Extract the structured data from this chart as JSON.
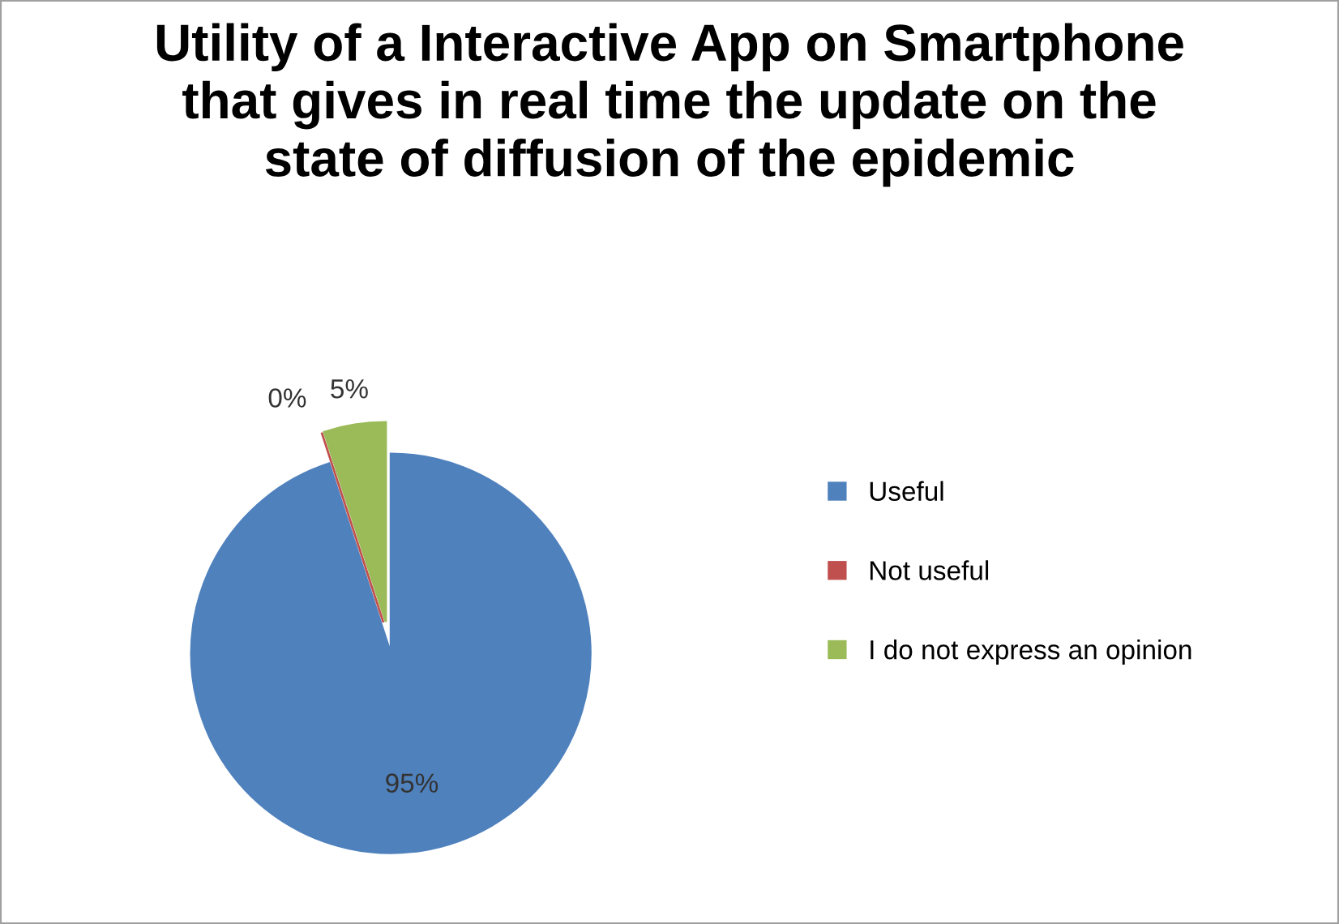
{
  "chart_data": {
    "type": "pie",
    "title": "Utility of a Interactive App on Smartphone that gives in real time the update on the state of diffusion of the epidemic",
    "categories": [
      "Useful",
      "Not useful",
      "I do not express an opinion"
    ],
    "values": [
      95,
      0,
      5
    ],
    "colors": [
      "#4f81bd",
      "#c0504d",
      "#9bbb59"
    ],
    "value_labels": [
      "95%",
      "0%",
      "5%"
    ],
    "legend": "right"
  }
}
